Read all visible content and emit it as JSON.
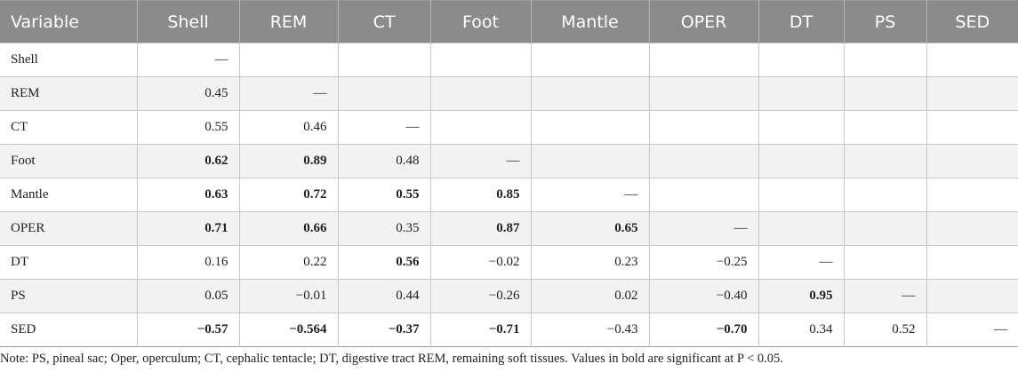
{
  "table": {
    "headers": [
      "Variable",
      "Shell",
      "REM",
      "CT",
      "Foot",
      "Mantle",
      "OPER",
      "DT",
      "PS",
      "SED"
    ],
    "rows": [
      {
        "label": "Shell",
        "cells": [
          {
            "v": "—",
            "b": false
          },
          {
            "v": "",
            "b": false
          },
          {
            "v": "",
            "b": false
          },
          {
            "v": "",
            "b": false
          },
          {
            "v": "",
            "b": false
          },
          {
            "v": "",
            "b": false
          },
          {
            "v": "",
            "b": false
          },
          {
            "v": "",
            "b": false
          },
          {
            "v": "",
            "b": false
          }
        ]
      },
      {
        "label": "REM",
        "cells": [
          {
            "v": "0.45",
            "b": false
          },
          {
            "v": "—",
            "b": false
          },
          {
            "v": "",
            "b": false
          },
          {
            "v": "",
            "b": false
          },
          {
            "v": "",
            "b": false
          },
          {
            "v": "",
            "b": false
          },
          {
            "v": "",
            "b": false
          },
          {
            "v": "",
            "b": false
          },
          {
            "v": "",
            "b": false
          }
        ]
      },
      {
        "label": "CT",
        "cells": [
          {
            "v": "0.55",
            "b": false
          },
          {
            "v": "0.46",
            "b": false
          },
          {
            "v": "—",
            "b": false
          },
          {
            "v": "",
            "b": false
          },
          {
            "v": "",
            "b": false
          },
          {
            "v": "",
            "b": false
          },
          {
            "v": "",
            "b": false
          },
          {
            "v": "",
            "b": false
          },
          {
            "v": "",
            "b": false
          }
        ]
      },
      {
        "label": "Foot",
        "cells": [
          {
            "v": "0.62",
            "b": true
          },
          {
            "v": "0.89",
            "b": true
          },
          {
            "v": "0.48",
            "b": false
          },
          {
            "v": "—",
            "b": false
          },
          {
            "v": "",
            "b": false
          },
          {
            "v": "",
            "b": false
          },
          {
            "v": "",
            "b": false
          },
          {
            "v": "",
            "b": false
          },
          {
            "v": "",
            "b": false
          }
        ]
      },
      {
        "label": "Mantle",
        "cells": [
          {
            "v": "0.63",
            "b": true
          },
          {
            "v": "0.72",
            "b": true
          },
          {
            "v": "0.55",
            "b": true
          },
          {
            "v": "0.85",
            "b": true
          },
          {
            "v": "—",
            "b": false
          },
          {
            "v": "",
            "b": false
          },
          {
            "v": "",
            "b": false
          },
          {
            "v": "",
            "b": false
          },
          {
            "v": "",
            "b": false
          }
        ]
      },
      {
        "label": "OPER",
        "cells": [
          {
            "v": "0.71",
            "b": true
          },
          {
            "v": "0.66",
            "b": true
          },
          {
            "v": "0.35",
            "b": false
          },
          {
            "v": "0.87",
            "b": true
          },
          {
            "v": "0.65",
            "b": true
          },
          {
            "v": "—",
            "b": false
          },
          {
            "v": "",
            "b": false
          },
          {
            "v": "",
            "b": false
          },
          {
            "v": "",
            "b": false
          }
        ]
      },
      {
        "label": "DT",
        "cells": [
          {
            "v": "0.16",
            "b": false
          },
          {
            "v": "0.22",
            "b": false
          },
          {
            "v": "0.56",
            "b": true
          },
          {
            "v": "−0.02",
            "b": false
          },
          {
            "v": "0.23",
            "b": false
          },
          {
            "v": "−0.25",
            "b": false
          },
          {
            "v": "—",
            "b": false
          },
          {
            "v": "",
            "b": false
          },
          {
            "v": "",
            "b": false
          }
        ]
      },
      {
        "label": "PS",
        "cells": [
          {
            "v": "0.05",
            "b": false
          },
          {
            "v": "−0.01",
            "b": false
          },
          {
            "v": "0.44",
            "b": false
          },
          {
            "v": "−0.26",
            "b": false
          },
          {
            "v": "0.02",
            "b": false
          },
          {
            "v": "−0.40",
            "b": false
          },
          {
            "v": "0.95",
            "b": true
          },
          {
            "v": "—",
            "b": false
          },
          {
            "v": "",
            "b": false
          }
        ]
      },
      {
        "label": "SED",
        "cells": [
          {
            "v": "−0.57",
            "b": true
          },
          {
            "v": "−0.564",
            "b": true
          },
          {
            "v": "−0.37",
            "b": true
          },
          {
            "v": "−0.71",
            "b": true
          },
          {
            "v": "−0.43",
            "b": false
          },
          {
            "v": "−0.70",
            "b": true
          },
          {
            "v": "0.34",
            "b": false
          },
          {
            "v": "0.52",
            "b": false
          },
          {
            "v": "—",
            "b": false
          }
        ]
      }
    ]
  },
  "note": "Note: PS, pineal sac; Oper, operculum; CT, cephalic tentacle; DT, digestive tract REM, remaining soft tissues. Values in bold are significant at P < 0.05."
}
